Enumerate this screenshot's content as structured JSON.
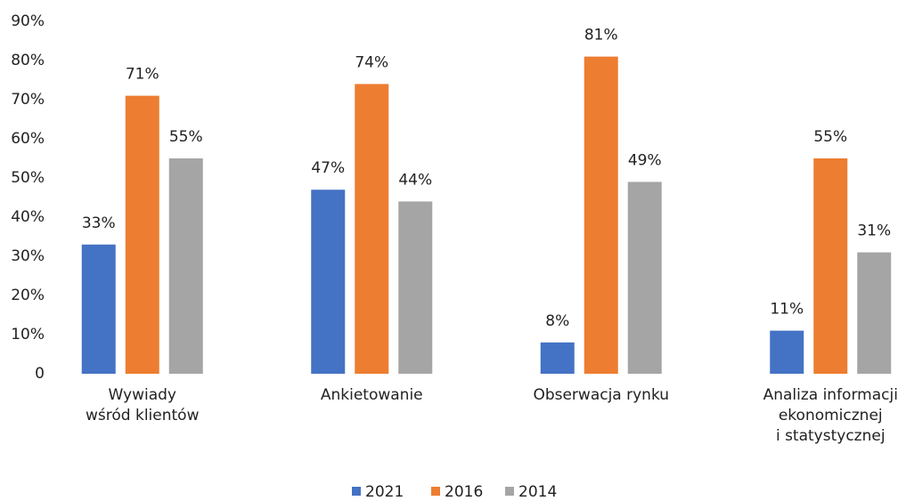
{
  "chart_data": {
    "type": "bar",
    "categories": [
      [
        "Wywiady",
        "wśród klientów"
      ],
      [
        "Ankietowanie"
      ],
      [
        "Obserwacja rynku"
      ],
      [
        "Analiza informacji",
        "ekonomicznej",
        "i statystycznej"
      ]
    ],
    "series": [
      {
        "name": "2021",
        "color": "#4472c4",
        "values": [
          33,
          47,
          8,
          11
        ],
        "value_labels": [
          "33%",
          "47%",
          "8%",
          "11%"
        ]
      },
      {
        "name": "2016",
        "color": "#ed7d31",
        "values": [
          71,
          74,
          81,
          55
        ],
        "value_labels": [
          "71%",
          "74%",
          "81%",
          "55%"
        ]
      },
      {
        "name": "2014",
        "color": "#a5a5a5",
        "values": [
          55,
          44,
          49,
          31
        ],
        "value_labels": [
          "55%",
          "44%",
          "49%",
          "31%"
        ]
      }
    ],
    "ylim": [
      0,
      90
    ],
    "yticks": [
      0,
      {
        "value": 10,
        "label": "10%"
      },
      {
        "value": 20,
        "label": "20%"
      },
      {
        "value": 30,
        "label": "30%"
      },
      {
        "value": 40,
        "label": "40%"
      },
      {
        "value": 50,
        "label": "50%"
      },
      {
        "value": 60,
        "label": "60%"
      },
      {
        "value": 70,
        "label": "70%"
      },
      {
        "value": 80,
        "label": "80%"
      },
      {
        "value": 90,
        "label": "90%"
      }
    ],
    "grid": false,
    "legend": "bottom"
  }
}
